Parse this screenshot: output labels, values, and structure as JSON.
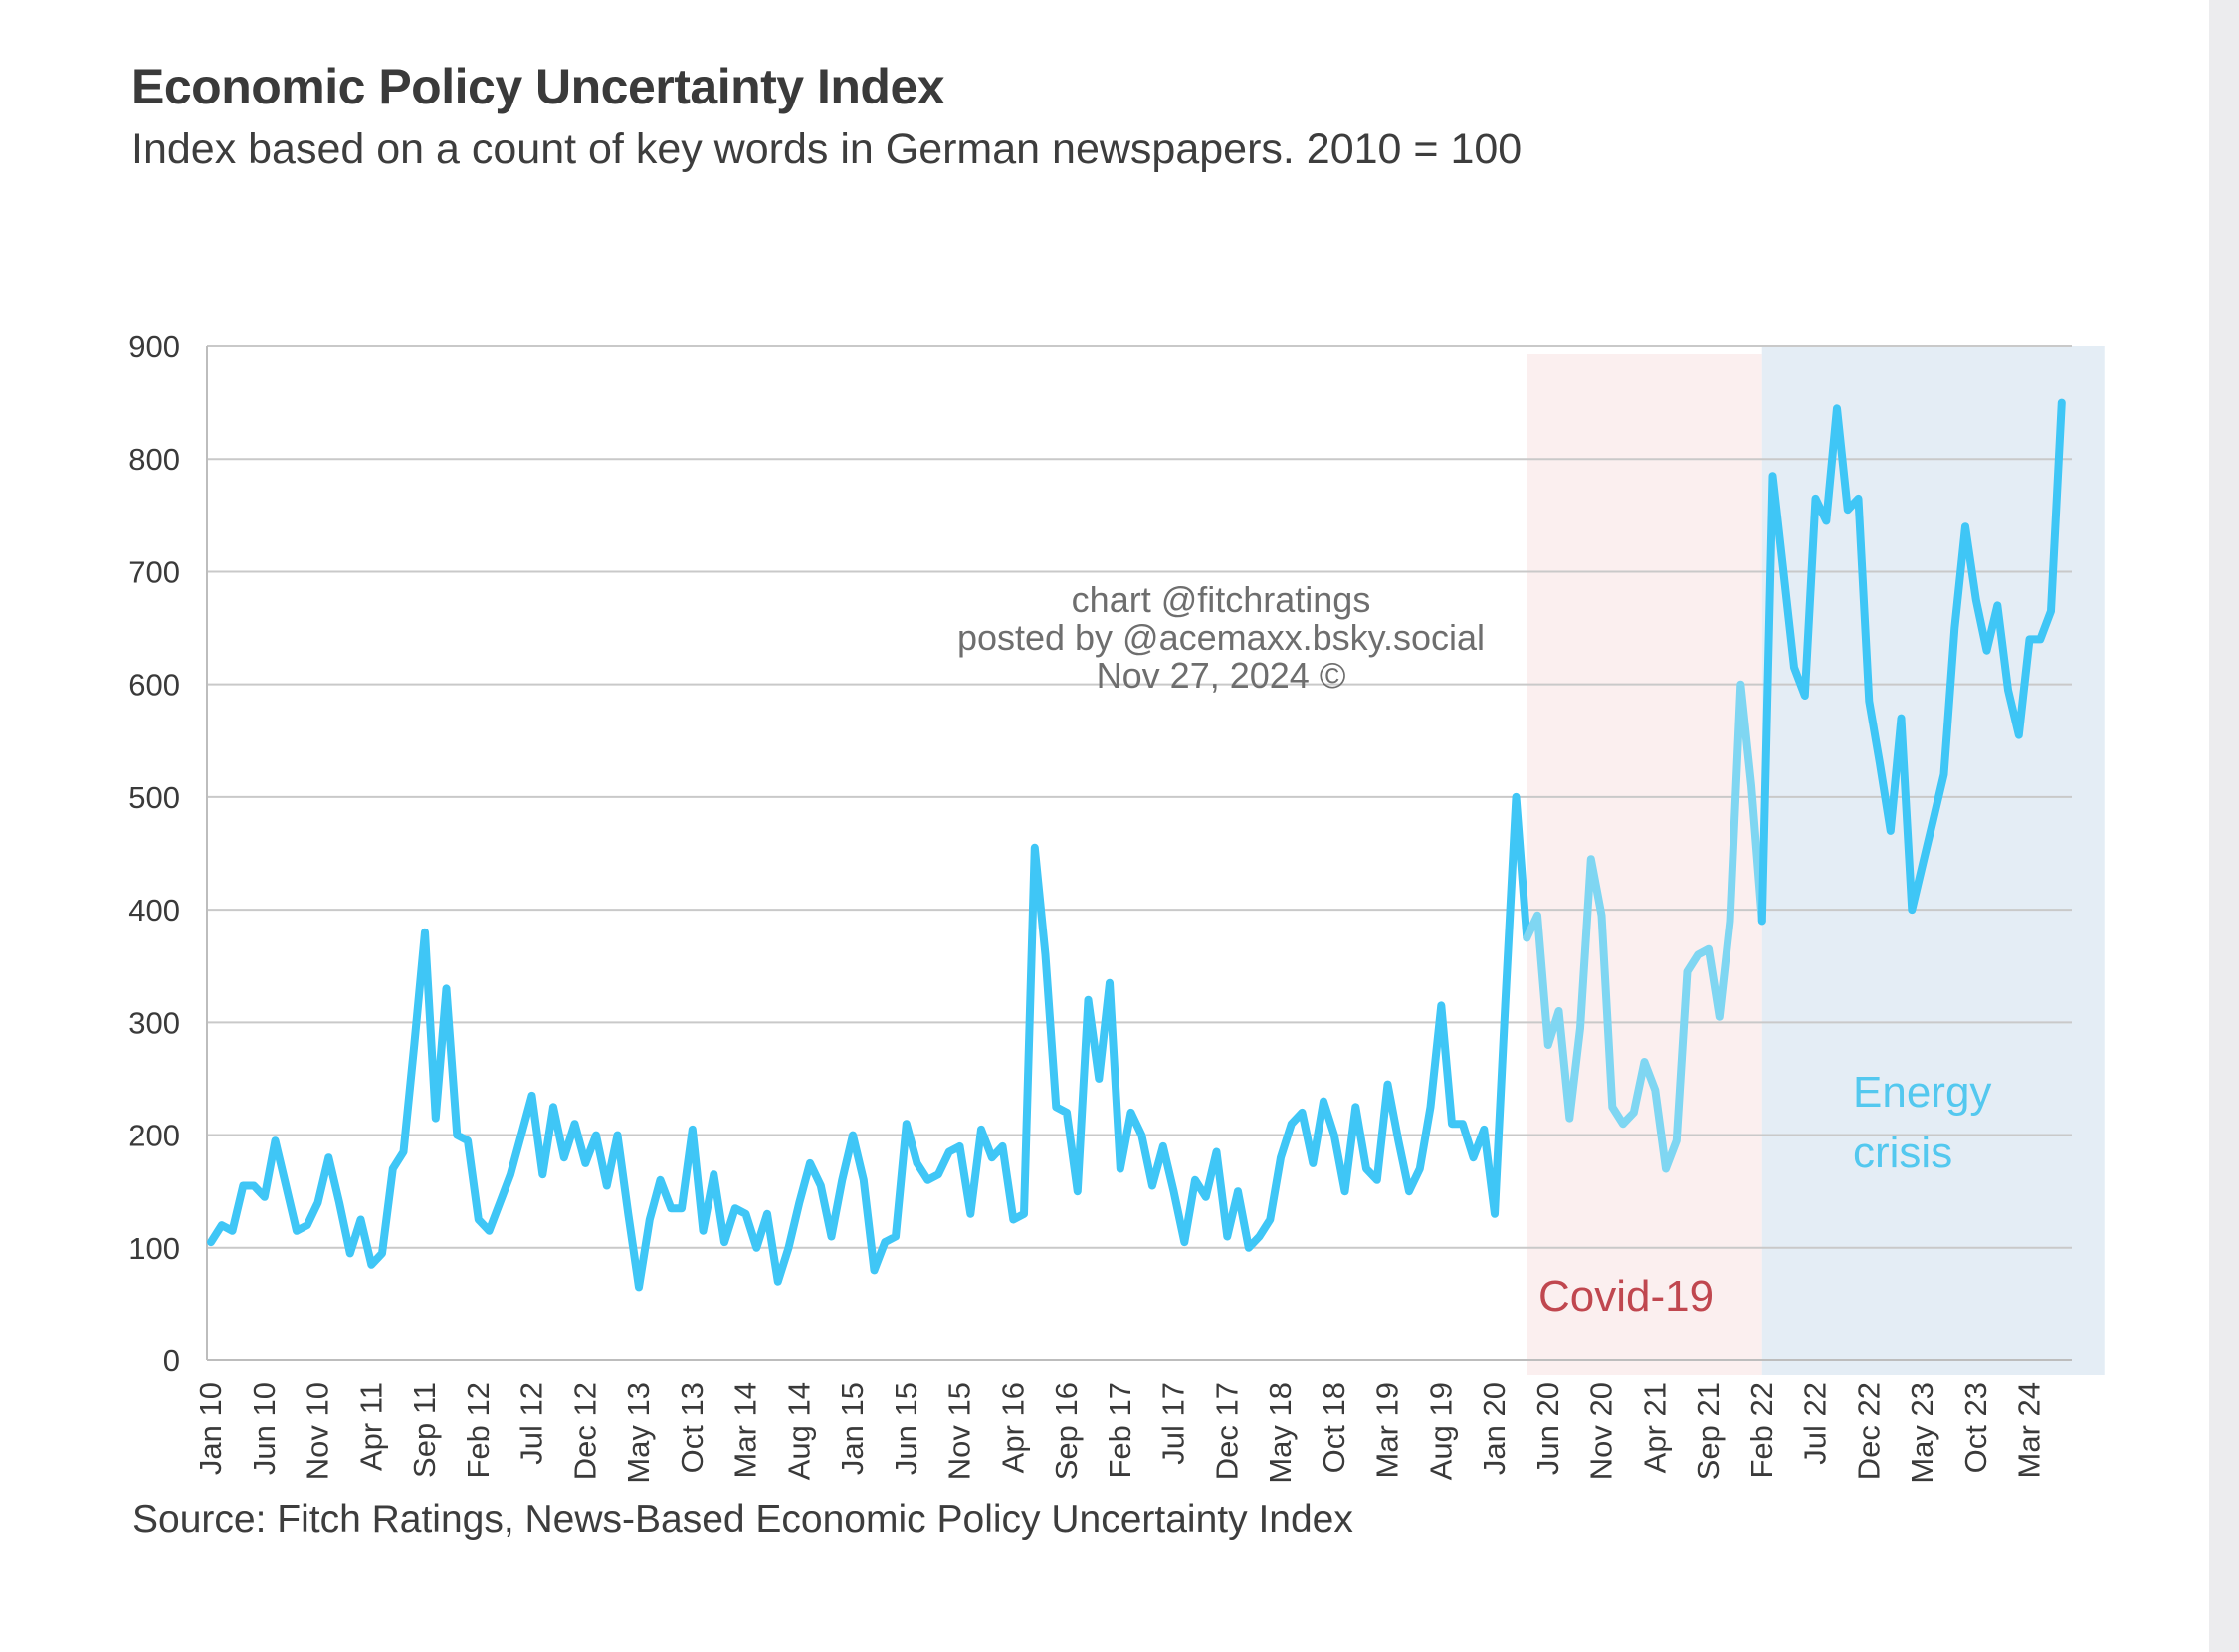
{
  "header": {
    "title": "Economic Policy Uncertainty Index",
    "subtitle": "Index based on a count of key words in German newspapers. 2010 = 100"
  },
  "footer": {
    "source": "Source: Fitch Ratings, News-Based Economic Policy Uncertainty Index"
  },
  "watermark": {
    "lines": [
      "chart @fitchratings",
      "posted by @acemaxx.bsky.social",
      "Nov 27, 2024 ©"
    ]
  },
  "colors": {
    "line": "#3fc6f6",
    "line_faded": "#7fd6f2",
    "grid": "#c9c9c9",
    "axis": "#bdbdbd",
    "covid_band": "#fbefef",
    "energy_band": "#e4edf5",
    "covid_label": "#c0474f",
    "energy_label": "#53c8ef"
  },
  "chart_data": {
    "type": "line",
    "ylim": [
      0,
      900
    ],
    "yticks": [
      0,
      100,
      200,
      300,
      400,
      500,
      600,
      700,
      800,
      900
    ],
    "x_tick_labels": [
      "Jan 10",
      "Jun 10",
      "Nov 10",
      "Apr 11",
      "Sep 11",
      "Feb 12",
      "Jul 12",
      "Dec 12",
      "May 13",
      "Oct 13",
      "Mar 14",
      "Aug 14",
      "Jan 15",
      "Jun 15",
      "Nov 15",
      "Apr 16",
      "Sep 16",
      "Feb 17",
      "Jul 17",
      "Dec 17",
      "May 18",
      "Oct 18",
      "Mar 19",
      "Aug 19",
      "Jan 20",
      "Jun 20",
      "Nov 20",
      "Apr 21",
      "Sep 21",
      "Feb 22",
      "Jul 22",
      "Dec 22",
      "May 23",
      "Oct 23",
      "Mar 24"
    ],
    "grid": true,
    "regions": [
      {
        "label": "Covid-19",
        "from": "Apr 20",
        "to": "Feb 22"
      },
      {
        "label": "Energy\ncrisis",
        "from": "Feb 22",
        "to": "Oct 24"
      }
    ],
    "series": [
      {
        "start": "Jan 10",
        "values": [
          105,
          120,
          115,
          155,
          155,
          145,
          195,
          155,
          115,
          120,
          140,
          180,
          140,
          95,
          125,
          85,
          95,
          170,
          185,
          280,
          380,
          215,
          330,
          200,
          195,
          125,
          115,
          140,
          165,
          200,
          235,
          165,
          225,
          180,
          210,
          175,
          200,
          155,
          200,
          130,
          65,
          125,
          160,
          135,
          135,
          205,
          115,
          165,
          105,
          135,
          130,
          100,
          130,
          70,
          100,
          140,
          175,
          155,
          110,
          160,
          200,
          160,
          80,
          105,
          110,
          210,
          175,
          160,
          165,
          185,
          190,
          130,
          205,
          180,
          190,
          125,
          130,
          455,
          360,
          225,
          220,
          150,
          320,
          250,
          335,
          170,
          220,
          200,
          155,
          190,
          150,
          105,
          160,
          145,
          185,
          110,
          150,
          100,
          110,
          125,
          180,
          210,
          220,
          175,
          230,
          200,
          150,
          225,
          170,
          160,
          245,
          195,
          150,
          170,
          225,
          315,
          210,
          210,
          180,
          205,
          130,
          320,
          500,
          375,
          395,
          280,
          310,
          215,
          295,
          445,
          395,
          225,
          210,
          220,
          265,
          240,
          170,
          195,
          345,
          360,
          365,
          305,
          390,
          600,
          510,
          390,
          785,
          700,
          615,
          590,
          765,
          745,
          845,
          755,
          765,
          585,
          530,
          470,
          570,
          400,
          440,
          480,
          520,
          650,
          740,
          675,
          630,
          670,
          595,
          555,
          640,
          640,
          665,
          850
        ]
      }
    ]
  }
}
